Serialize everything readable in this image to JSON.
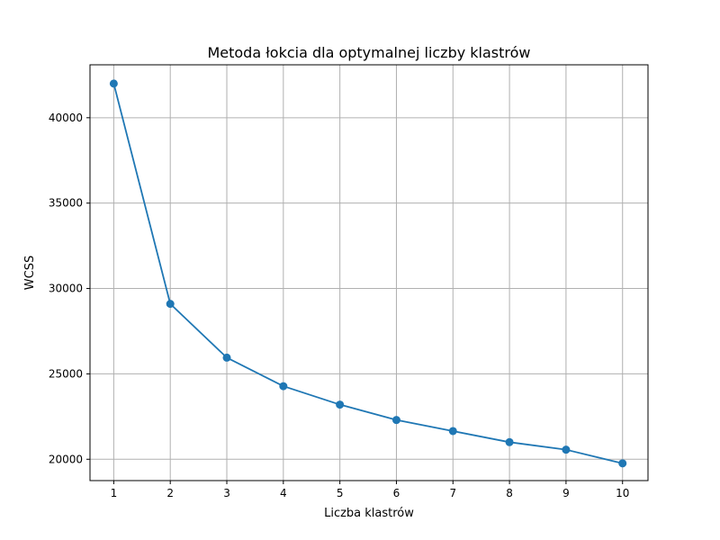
{
  "chart_data": {
    "type": "line",
    "title": "Metoda łokcia dla optymalnej liczby klastrów",
    "xlabel": "Liczba klastrów",
    "ylabel": "WCSS",
    "x": [
      1,
      2,
      3,
      4,
      5,
      6,
      7,
      8,
      9,
      10
    ],
    "series": [
      {
        "values": [
          42000,
          29100,
          25950,
          24280,
          23200,
          22300,
          21650,
          21000,
          20560,
          19760
        ],
        "color": "#1f77b4",
        "marker": "circle"
      }
    ],
    "xlim": [
      0.58,
      10.45
    ],
    "ylim": [
      18750,
      43100
    ],
    "xticks": [
      1,
      2,
      3,
      4,
      5,
      6,
      7,
      8,
      9,
      10
    ],
    "yticks": [
      20000,
      25000,
      30000,
      35000,
      40000
    ],
    "grid": true
  }
}
